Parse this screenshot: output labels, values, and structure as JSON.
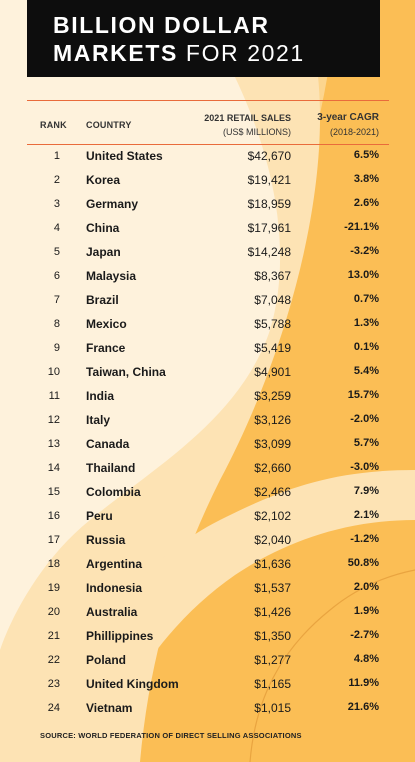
{
  "title": {
    "line1": "BILLION DOLLAR",
    "line2_bold": "MARKETS",
    "line2_light": "FOR 2021"
  },
  "headers": {
    "rank": "RANK",
    "country": "COUNTRY",
    "sales_line1": "2021 RETAIL SALES",
    "sales_line2": "(US$ MILLIONS)",
    "cagr_line1": "3-year CAGR",
    "cagr_line2": "(2018-2021)"
  },
  "rows": [
    {
      "rank": "1",
      "country": "United States",
      "sales": "$42,670",
      "cagr": "6.5%"
    },
    {
      "rank": "2",
      "country": "Korea",
      "sales": "$19,421",
      "cagr": "3.8%"
    },
    {
      "rank": "3",
      "country": "Germany",
      "sales": "$18,959",
      "cagr": "2.6%"
    },
    {
      "rank": "4",
      "country": "China",
      "sales": "$17,961",
      "cagr": "-21.1%"
    },
    {
      "rank": "5",
      "country": "Japan",
      "sales": "$14,248",
      "cagr": "-3.2%"
    },
    {
      "rank": "6",
      "country": "Malaysia",
      "sales": "$8,367",
      "cagr": "13.0%"
    },
    {
      "rank": "7",
      "country": "Brazil",
      "sales": "$7,048",
      "cagr": "0.7%"
    },
    {
      "rank": "8",
      "country": "Mexico",
      "sales": "$5,788",
      "cagr": "1.3%"
    },
    {
      "rank": "9",
      "country": "France",
      "sales": "$5,419",
      "cagr": "0.1%"
    },
    {
      "rank": "10",
      "country": "Taiwan, China",
      "sales": "$4,901",
      "cagr": "5.4%"
    },
    {
      "rank": "11",
      "country": "India",
      "sales": "$3,259",
      "cagr": "15.7%"
    },
    {
      "rank": "12",
      "country": "Italy",
      "sales": "$3,126",
      "cagr": "-2.0%"
    },
    {
      "rank": "13",
      "country": "Canada",
      "sales": "$3,099",
      "cagr": "5.7%"
    },
    {
      "rank": "14",
      "country": "Thailand",
      "sales": "$2,660",
      "cagr": "-3.0%"
    },
    {
      "rank": "15",
      "country": "Colombia",
      "sales": "$2,466",
      "cagr": "7.9%"
    },
    {
      "rank": "16",
      "country": "Peru",
      "sales": "$2,102",
      "cagr": "2.1%"
    },
    {
      "rank": "17",
      "country": "Russia",
      "sales": "$2,040",
      "cagr": "-1.2%"
    },
    {
      "rank": "18",
      "country": "Argentina",
      "sales": "$1,636",
      "cagr": "50.8%"
    },
    {
      "rank": "19",
      "country": "Indonesia",
      "sales": "$1,537",
      "cagr": "2.0%"
    },
    {
      "rank": "20",
      "country": "Australia",
      "sales": "$1,426",
      "cagr": "1.9%"
    },
    {
      "rank": "21",
      "country": "Phillippines",
      "sales": "$1,350",
      "cagr": "-2.7%"
    },
    {
      "rank": "22",
      "country": "Poland",
      "sales": "$1,277",
      "cagr": "4.8%"
    },
    {
      "rank": "23",
      "country": "United Kingdom",
      "sales": "$1,165",
      "cagr": "11.9%"
    },
    {
      "rank": "24",
      "country": "Vietnam",
      "sales": "$1,015",
      "cagr": "21.6%"
    }
  ],
  "source": "SOURCE: WORLD FEDERATION OF DIRECT SELLING ASSOCIATIONS",
  "colors": {
    "background": "#fbbe55",
    "shape_light": "#fde3b4",
    "shape_cream": "#fef2dc",
    "title_box": "#0d0d0d",
    "rule": "#e96b3b"
  }
}
